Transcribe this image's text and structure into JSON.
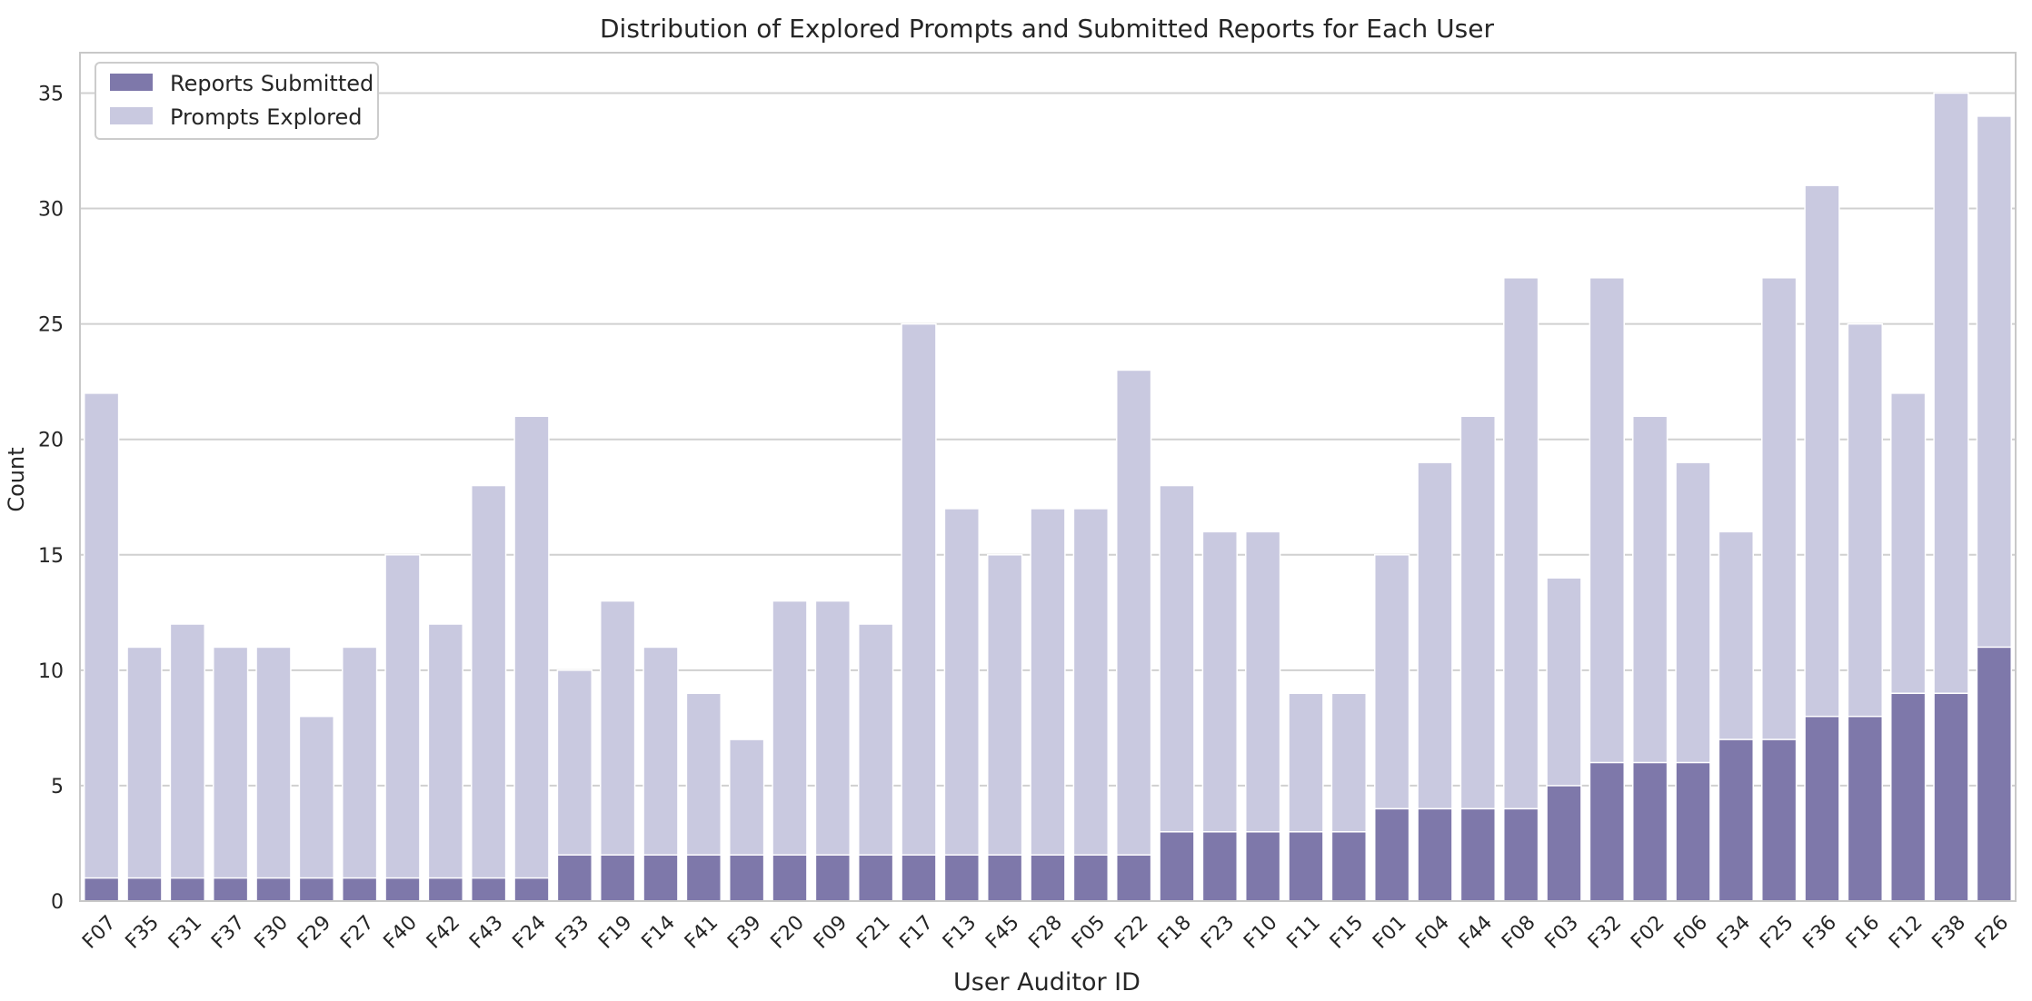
{
  "chart_data": {
    "type": "bar",
    "title": "Distribution of Explored Prompts and Submitted Reports for Each User",
    "xlabel": "User Auditor ID",
    "ylabel": "Count",
    "ylim": [
      0,
      36.75
    ],
    "yticks": [
      0,
      5,
      10,
      15,
      20,
      25,
      30,
      35
    ],
    "grid": "horizontal",
    "legend_position": "top-left",
    "colors": {
      "reports": "#7e78aa",
      "prompts": "#c9c9e0",
      "grid": "#d0d0d0",
      "frame": "#c8c8c8"
    },
    "categories": [
      "F07",
      "F35",
      "F31",
      "F37",
      "F30",
      "F29",
      "F27",
      "F40",
      "F42",
      "F43",
      "F24",
      "F33",
      "F19",
      "F14",
      "F41",
      "F39",
      "F20",
      "F09",
      "F21",
      "F17",
      "F13",
      "F45",
      "F28",
      "F05",
      "F22",
      "F18",
      "F23",
      "F10",
      "F11",
      "F15",
      "F01",
      "F04",
      "F44",
      "F08",
      "F03",
      "F32",
      "F02",
      "F06",
      "F34",
      "F25",
      "F36",
      "F16",
      "F12",
      "F38",
      "F26"
    ],
    "series": [
      {
        "name": "Prompts Explored",
        "values": [
          22,
          11,
          12,
          11,
          11,
          8,
          11,
          15,
          12,
          18,
          21,
          10,
          13,
          11,
          9,
          7,
          13,
          13,
          12,
          25,
          17,
          15,
          17,
          17,
          23,
          18,
          16,
          16,
          9,
          9,
          15,
          19,
          21,
          27,
          14,
          27,
          21,
          19,
          16,
          27,
          31,
          25,
          22,
          35,
          34
        ]
      },
      {
        "name": "Reports Submitted",
        "values": [
          1,
          1,
          1,
          1,
          1,
          1,
          1,
          1,
          1,
          1,
          1,
          2,
          2,
          2,
          2,
          2,
          2,
          2,
          2,
          2,
          2,
          2,
          2,
          2,
          2,
          3,
          3,
          3,
          3,
          3,
          4,
          4,
          4,
          4,
          5,
          6,
          6,
          6,
          7,
          7,
          8,
          8,
          9,
          9,
          11
        ]
      }
    ],
    "legend": [
      "Reports Submitted",
      "Prompts Explored"
    ]
  }
}
